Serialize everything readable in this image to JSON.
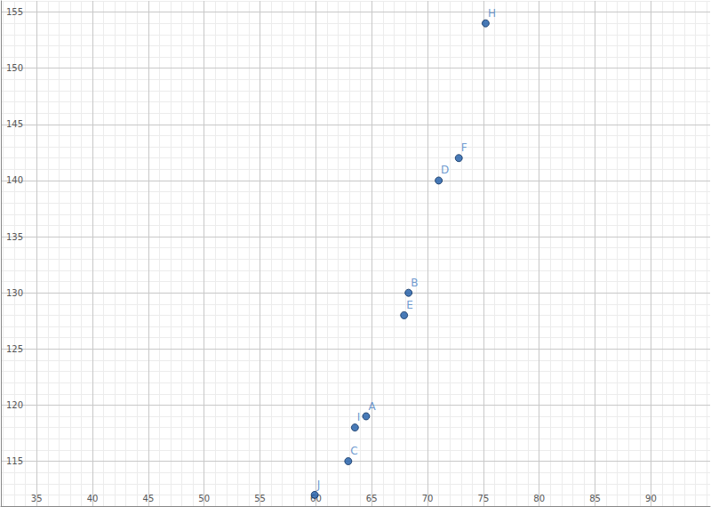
{
  "chart_data": {
    "type": "scatter",
    "x": [
      64.5,
      68.3,
      62.9,
      71.0,
      67.9,
      72.8,
      75.2,
      63.5,
      59.9
    ],
    "values": [
      119,
      130,
      115,
      140,
      128,
      142,
      154,
      118,
      112
    ],
    "labels": [
      "A",
      "B",
      "C",
      "D",
      "E",
      "F",
      "H",
      "I",
      "J"
    ],
    "color": "#1c5aa6",
    "xlim": [
      31.8,
      95.3
    ],
    "xticks": [
      35,
      40,
      45,
      50,
      55,
      60,
      65,
      70,
      75,
      80,
      85,
      90
    ],
    "ylim": [
      111,
      156
    ],
    "yticks": [
      115,
      120,
      125,
      130,
      135,
      140,
      145,
      150,
      155
    ],
    "grid": true
  }
}
